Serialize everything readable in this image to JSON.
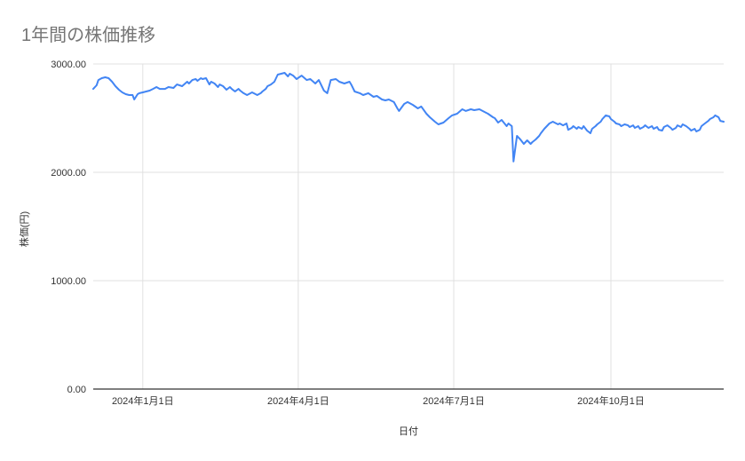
{
  "chart_data": {
    "type": "line",
    "title": "1年間の株価推移",
    "xlabel": "日付",
    "ylabel": "株価(円)",
    "legend": "none",
    "grid": true,
    "ylim": [
      0,
      3000
    ],
    "xlim_days": [
      -29,
      340
    ],
    "x_unit": "days from 2024-01-01",
    "x_ticks": [
      {
        "day": 0,
        "label": "2024年1月1日"
      },
      {
        "day": 91,
        "label": "2024年4月1日"
      },
      {
        "day": 182,
        "label": "2024年7月1日"
      },
      {
        "day": 274,
        "label": "2024年10月1日"
      }
    ],
    "y_ticks": [
      {
        "value": 0,
        "label": "0.00"
      },
      {
        "value": 1000,
        "label": "1000.00"
      },
      {
        "value": 2000,
        "label": "2000.00"
      },
      {
        "value": 3000,
        "label": "3000.00"
      }
    ],
    "colors": {
      "line": "#4285f4",
      "title_text": "#757575",
      "axis_text": "#333333",
      "gridline": "#e0e0e0",
      "axis_line": "#333333",
      "background": "#ffffff"
    },
    "series": [
      {
        "color": "#4285f4",
        "points": [
          [
            -29,
            2770
          ],
          [
            -27,
            2803
          ],
          [
            -26,
            2852
          ],
          [
            -24,
            2869
          ],
          [
            -22,
            2877
          ],
          [
            -20,
            2869
          ],
          [
            -18,
            2836
          ],
          [
            -16,
            2795
          ],
          [
            -14,
            2762
          ],
          [
            -12,
            2738
          ],
          [
            -10,
            2721
          ],
          [
            -8,
            2713
          ],
          [
            -6,
            2713
          ],
          [
            -5,
            2672
          ],
          [
            -3,
            2721
          ],
          [
            -2,
            2730
          ],
          [
            0,
            2738
          ],
          [
            2,
            2746
          ],
          [
            4,
            2754
          ],
          [
            6,
            2770
          ],
          [
            8,
            2787
          ],
          [
            10,
            2770
          ],
          [
            13,
            2770
          ],
          [
            15,
            2787
          ],
          [
            18,
            2779
          ],
          [
            20,
            2811
          ],
          [
            23,
            2795
          ],
          [
            26,
            2836
          ],
          [
            27,
            2820
          ],
          [
            29,
            2852
          ],
          [
            31,
            2861
          ],
          [
            32,
            2844
          ],
          [
            34,
            2869
          ],
          [
            35,
            2861
          ],
          [
            37,
            2869
          ],
          [
            39,
            2811
          ],
          [
            40,
            2836
          ],
          [
            42,
            2820
          ],
          [
            44,
            2787
          ],
          [
            45,
            2811
          ],
          [
            47,
            2795
          ],
          [
            49,
            2762
          ],
          [
            51,
            2787
          ],
          [
            52,
            2770
          ],
          [
            54,
            2746
          ],
          [
            56,
            2770
          ],
          [
            57,
            2754
          ],
          [
            59,
            2730
          ],
          [
            61,
            2713
          ],
          [
            62,
            2721
          ],
          [
            64,
            2738
          ],
          [
            66,
            2721
          ],
          [
            67,
            2713
          ],
          [
            69,
            2730
          ],
          [
            70,
            2746
          ],
          [
            72,
            2770
          ],
          [
            73,
            2795
          ],
          [
            75,
            2811
          ],
          [
            77,
            2836
          ],
          [
            78,
            2869
          ],
          [
            79,
            2902
          ],
          [
            81,
            2910
          ],
          [
            83,
            2918
          ],
          [
            85,
            2885
          ],
          [
            86,
            2910
          ],
          [
            88,
            2893
          ],
          [
            90,
            2861
          ],
          [
            93,
            2893
          ],
          [
            96,
            2852
          ],
          [
            98,
            2861
          ],
          [
            101,
            2820
          ],
          [
            103,
            2852
          ],
          [
            106,
            2754
          ],
          [
            108,
            2730
          ],
          [
            110,
            2852
          ],
          [
            113,
            2861
          ],
          [
            115,
            2836
          ],
          [
            118,
            2820
          ],
          [
            121,
            2836
          ],
          [
            122,
            2811
          ],
          [
            124,
            2746
          ],
          [
            127,
            2730
          ],
          [
            129,
            2713
          ],
          [
            132,
            2730
          ],
          [
            135,
            2697
          ],
          [
            137,
            2705
          ],
          [
            140,
            2672
          ],
          [
            142,
            2664
          ],
          [
            144,
            2672
          ],
          [
            147,
            2648
          ],
          [
            149,
            2590
          ],
          [
            150,
            2566
          ],
          [
            153,
            2631
          ],
          [
            155,
            2648
          ],
          [
            158,
            2623
          ],
          [
            161,
            2590
          ],
          [
            163,
            2607
          ],
          [
            166,
            2541
          ],
          [
            168,
            2508
          ],
          [
            171,
            2467
          ],
          [
            173,
            2443
          ],
          [
            176,
            2459
          ],
          [
            179,
            2500
          ],
          [
            181,
            2525
          ],
          [
            184,
            2541
          ],
          [
            187,
            2582
          ],
          [
            189,
            2566
          ],
          [
            192,
            2582
          ],
          [
            194,
            2574
          ],
          [
            197,
            2582
          ],
          [
            200,
            2557
          ],
          [
            202,
            2541
          ],
          [
            205,
            2508
          ],
          [
            206,
            2500
          ],
          [
            208,
            2459
          ],
          [
            210,
            2484
          ],
          [
            213,
            2426
          ],
          [
            214,
            2451
          ],
          [
            216,
            2426
          ],
          [
            217,
            2100
          ],
          [
            219,
            2336
          ],
          [
            221,
            2303
          ],
          [
            223,
            2262
          ],
          [
            225,
            2295
          ],
          [
            227,
            2262
          ],
          [
            228,
            2279
          ],
          [
            230,
            2303
          ],
          [
            232,
            2336
          ],
          [
            233,
            2361
          ],
          [
            235,
            2402
          ],
          [
            238,
            2451
          ],
          [
            240,
            2467
          ],
          [
            241,
            2459
          ],
          [
            243,
            2443
          ],
          [
            244,
            2451
          ],
          [
            246,
            2434
          ],
          [
            248,
            2451
          ],
          [
            249,
            2393
          ],
          [
            251,
            2410
          ],
          [
            252,
            2426
          ],
          [
            254,
            2402
          ],
          [
            255,
            2418
          ],
          [
            257,
            2402
          ],
          [
            258,
            2426
          ],
          [
            260,
            2385
          ],
          [
            262,
            2361
          ],
          [
            263,
            2402
          ],
          [
            265,
            2426
          ],
          [
            266,
            2443
          ],
          [
            268,
            2467
          ],
          [
            269,
            2492
          ],
          [
            271,
            2525
          ],
          [
            273,
            2516
          ],
          [
            274,
            2492
          ],
          [
            276,
            2467
          ],
          [
            277,
            2451
          ],
          [
            279,
            2443
          ],
          [
            280,
            2426
          ],
          [
            282,
            2443
          ],
          [
            284,
            2434
          ],
          [
            285,
            2418
          ],
          [
            287,
            2434
          ],
          [
            288,
            2410
          ],
          [
            290,
            2426
          ],
          [
            291,
            2402
          ],
          [
            293,
            2418
          ],
          [
            294,
            2434
          ],
          [
            296,
            2410
          ],
          [
            298,
            2426
          ],
          [
            299,
            2402
          ],
          [
            301,
            2418
          ],
          [
            302,
            2393
          ],
          [
            304,
            2385
          ],
          [
            305,
            2418
          ],
          [
            307,
            2434
          ],
          [
            309,
            2410
          ],
          [
            310,
            2393
          ],
          [
            312,
            2410
          ],
          [
            313,
            2434
          ],
          [
            315,
            2418
          ],
          [
            316,
            2443
          ],
          [
            318,
            2426
          ],
          [
            320,
            2402
          ],
          [
            321,
            2385
          ],
          [
            323,
            2402
          ],
          [
            324,
            2377
          ],
          [
            326,
            2393
          ],
          [
            327,
            2426
          ],
          [
            329,
            2451
          ],
          [
            331,
            2475
          ],
          [
            332,
            2492
          ],
          [
            334,
            2508
          ],
          [
            335,
            2525
          ],
          [
            337,
            2508
          ],
          [
            338,
            2475
          ],
          [
            340,
            2467
          ]
        ]
      }
    ]
  }
}
